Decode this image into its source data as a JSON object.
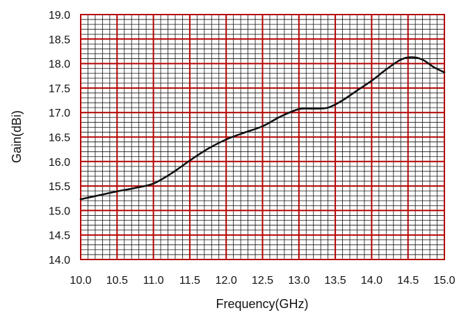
{
  "chart_data": {
    "type": "line",
    "title": "",
    "xlabel": "Frequency(GHz)",
    "ylabel": "Gain(dBi)",
    "xlim": [
      10.0,
      15.0
    ],
    "ylim": [
      14.0,
      19.0
    ],
    "x_ticks": [
      "10.0",
      "10.5",
      "11.0",
      "11.5",
      "12.0",
      "12.5",
      "13.0",
      "13.5",
      "14.0",
      "14.5",
      "15.0"
    ],
    "y_ticks": [
      "19.0",
      "18.5",
      "18.0",
      "17.5",
      "17.0",
      "16.5",
      "16.0",
      "15.5",
      "15.0",
      "14.5",
      "14.0"
    ],
    "grid": true,
    "legend": "none",
    "series": [
      {
        "x": [
          10.0,
          10.25,
          10.5,
          10.75,
          11.0,
          11.25,
          11.5,
          11.75,
          12.0,
          12.25,
          12.5,
          12.75,
          13.0,
          13.2,
          13.4,
          13.6,
          13.8,
          14.0,
          14.2,
          14.4,
          14.55,
          14.7,
          14.85,
          15.0
        ],
        "y": [
          15.23,
          15.31,
          15.39,
          15.46,
          15.55,
          15.76,
          16.02,
          16.26,
          16.45,
          16.59,
          16.72,
          16.92,
          17.07,
          17.08,
          17.1,
          17.25,
          17.45,
          17.65,
          17.88,
          18.08,
          18.13,
          18.08,
          17.93,
          17.82
        ],
        "color": "#111111"
      }
    ],
    "colors": {
      "major_grid": "#b30000",
      "minor_grid": "#111111",
      "frame": "#b30000"
    }
  }
}
